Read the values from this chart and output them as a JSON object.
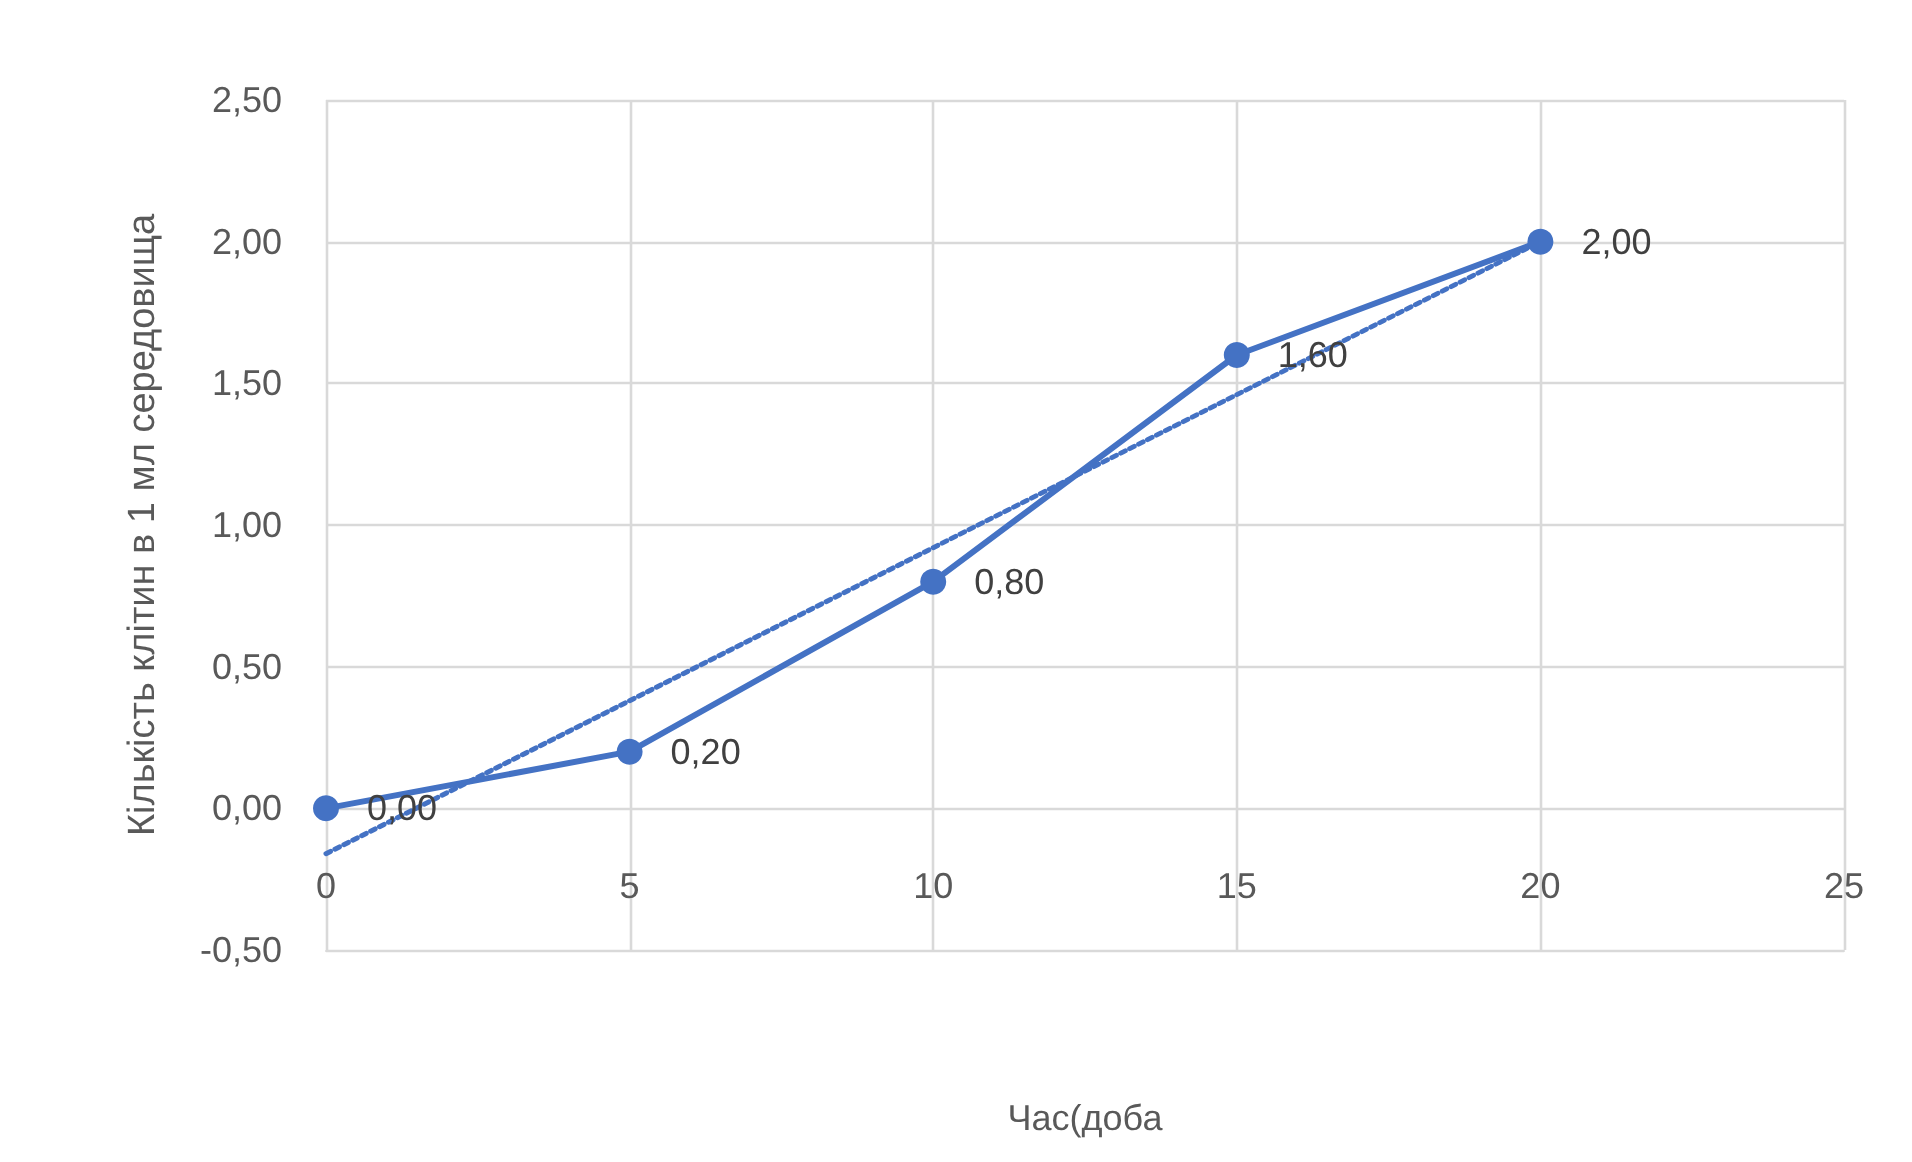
{
  "chart_data": {
    "type": "line",
    "xlabel": "Час(доба",
    "ylabel": "Кількість клітин в 1 мл середовища",
    "x": [
      0,
      5,
      10,
      15,
      20
    ],
    "series": [
      {
        "color": "#4472c4",
        "values": [
          0,
          0.2,
          0.8,
          1.6,
          2.0
        ],
        "value_labels": [
          "0,00",
          "0,20",
          "0,80",
          "1,60",
          "2,00"
        ],
        "marker": "circle",
        "line_style": "solid"
      },
      {
        "type": "line",
        "color": "#4472c4",
        "x": [
          0,
          20
        ],
        "values": [
          -0.16,
          2.0
        ],
        "marker": "none",
        "line_style": "dotted"
      }
    ],
    "xlim": [
      0,
      25
    ],
    "xticks": [
      0,
      5,
      10,
      15,
      20,
      25
    ],
    "ylim": [
      -0.5,
      2.5
    ],
    "yticks": [
      {
        "value": -0.5,
        "label": "-0,50"
      },
      {
        "value": 0,
        "label": "0,00"
      },
      {
        "value": 0.5,
        "label": "0,50"
      },
      {
        "value": 1,
        "label": "1,00"
      },
      {
        "value": 1.5,
        "label": "1,50"
      },
      {
        "value": 2,
        "label": "2,00"
      },
      {
        "value": 2.5,
        "label": "2,50"
      }
    ],
    "grid": true
  }
}
